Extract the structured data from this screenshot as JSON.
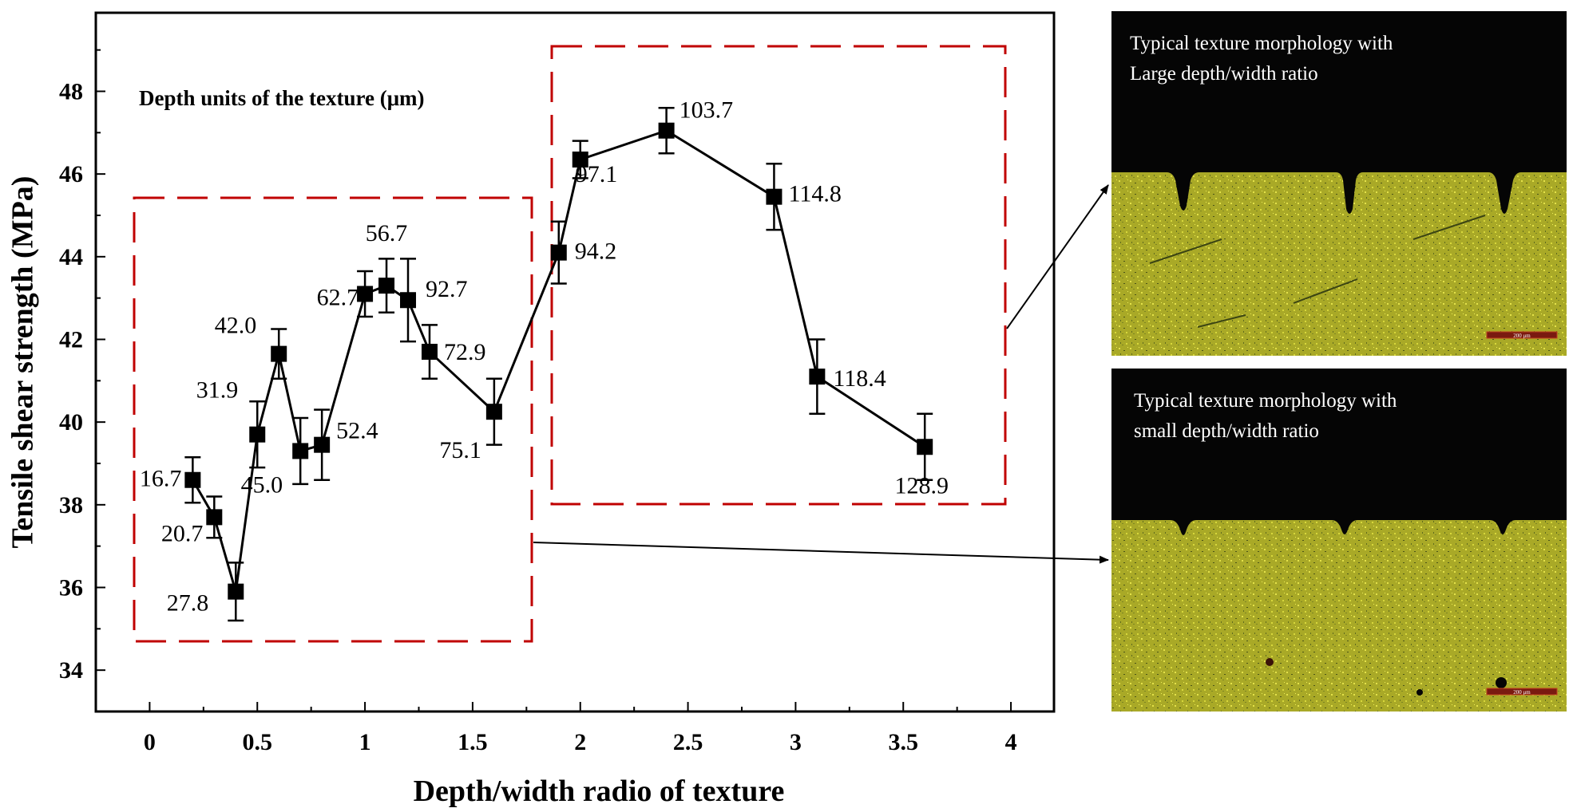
{
  "chart_data": {
    "type": "line",
    "xlabel": "Depth/width radio of texture",
    "ylabel": "Tensile shear strength (MPa)",
    "annotation_title": "Depth units of the texture (μm)",
    "xlim": [
      -0.25,
      4.2
    ],
    "ylim": [
      33,
      49.9
    ],
    "x_ticks": [
      0,
      0.5,
      1,
      1.5,
      2,
      2.5,
      3,
      3.5,
      4
    ],
    "x_tick_labels": [
      "0",
      "0.5",
      "1",
      "1.5",
      "2",
      "2.5",
      "3",
      "3.5",
      "4"
    ],
    "y_ticks": [
      34,
      36,
      38,
      40,
      42,
      44,
      46,
      48
    ],
    "y_tick_labels": [
      "34",
      "36",
      "38",
      "40",
      "42",
      "44",
      "46",
      "48"
    ],
    "grid": false,
    "points": [
      {
        "x": 0.2,
        "y": 38.6,
        "err": 0.55,
        "label": "16.7"
      },
      {
        "x": 0.3,
        "y": 37.7,
        "err": 0.5,
        "label": "20.7"
      },
      {
        "x": 0.4,
        "y": 35.9,
        "err": 0.7,
        "label": "27.8"
      },
      {
        "x": 0.5,
        "y": 39.7,
        "err": 0.8,
        "label": "31.9"
      },
      {
        "x": 0.6,
        "y": 41.65,
        "err": 0.6,
        "label": "42.0"
      },
      {
        "x": 0.7,
        "y": 39.3,
        "err": 0.8,
        "label": "45.0"
      },
      {
        "x": 0.8,
        "y": 39.45,
        "err": 0.85,
        "label": "52.4"
      },
      {
        "x": 1.0,
        "y": 43.1,
        "err": 0.55,
        "label": "62.7"
      },
      {
        "x": 1.1,
        "y": 43.3,
        "err": 0.65,
        "label": "56.7"
      },
      {
        "x": 1.2,
        "y": 42.95,
        "err": 1.0,
        "label": "92.7"
      },
      {
        "x": 1.3,
        "y": 41.7,
        "err": 0.65,
        "label": "72.9"
      },
      {
        "x": 1.6,
        "y": 40.25,
        "err": 0.8,
        "label": "75.1"
      },
      {
        "x": 1.9,
        "y": 44.1,
        "err": 0.75,
        "label": "94.2"
      },
      {
        "x": 2.0,
        "y": 46.35,
        "err": 0.45,
        "label": "97.1"
      },
      {
        "x": 2.4,
        "y": 47.05,
        "err": 0.55,
        "label": "103.7"
      },
      {
        "x": 2.9,
        "y": 45.45,
        "err": 0.8,
        "label": "114.8"
      },
      {
        "x": 3.1,
        "y": 41.1,
        "err": 0.9,
        "label": "118.4"
      },
      {
        "x": 3.6,
        "y": 39.4,
        "err": 0.8,
        "label": "128.9"
      }
    ],
    "colors": {
      "line": "#000000",
      "marker": "#000000",
      "highlight_box": "#c00000",
      "micrograph_dark": "#050505",
      "micrograph_metal": "#b8b828"
    }
  },
  "micrographs": {
    "large_ratio_caption_line1": "Typical texture morphology with",
    "large_ratio_caption_line2": "Large depth/width ratio",
    "small_ratio_caption_line1": "Typical texture morphology with",
    "small_ratio_caption_line2": "small depth/width ratio",
    "scale_bar_label": "200 μm"
  }
}
